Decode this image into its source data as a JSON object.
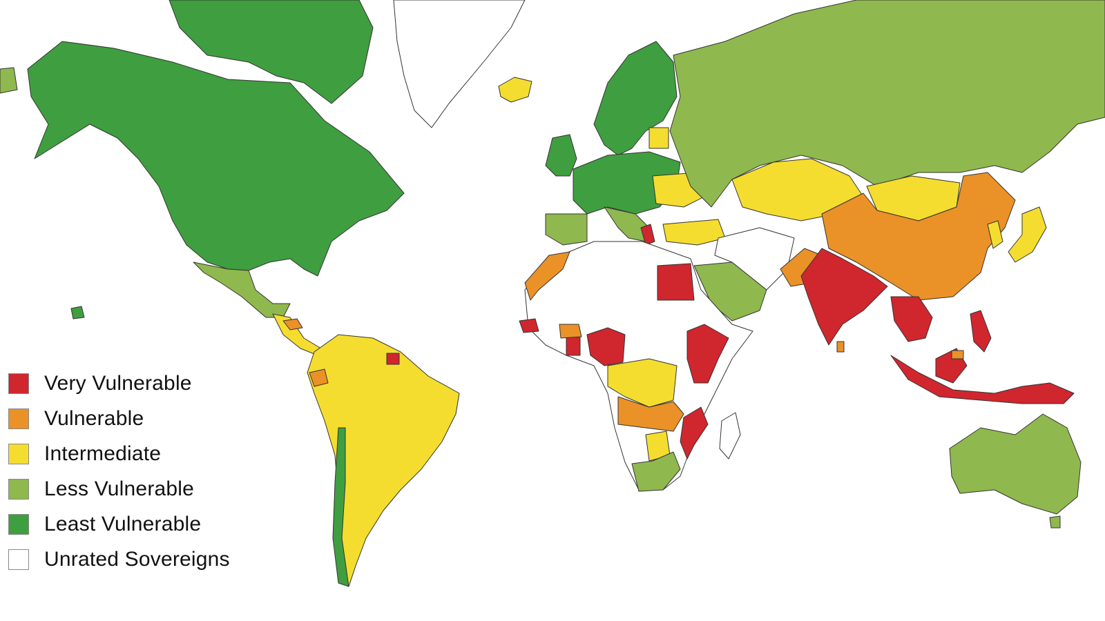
{
  "colors": {
    "very_vulnerable": "#d0262e",
    "vulnerable": "#ea9128",
    "intermediate": "#f5dd2f",
    "less_vulnerable": "#8fb84e",
    "least_vulnerable": "#3f9e3f",
    "unrated": "#ffffff"
  },
  "legend": {
    "items": [
      {
        "label": "Very Vulnerable",
        "color": "#d0262e"
      },
      {
        "label": "Vulnerable",
        "color": "#ea9128"
      },
      {
        "label": "Intermediate",
        "color": "#f5dd2f"
      },
      {
        "label": "Less Vulnerable",
        "color": "#8fb84e"
      },
      {
        "label": "Least Vulnerable",
        "color": "#3f9e3f"
      },
      {
        "label": "Unrated Sovereigns",
        "color": "#ffffff"
      }
    ]
  }
}
